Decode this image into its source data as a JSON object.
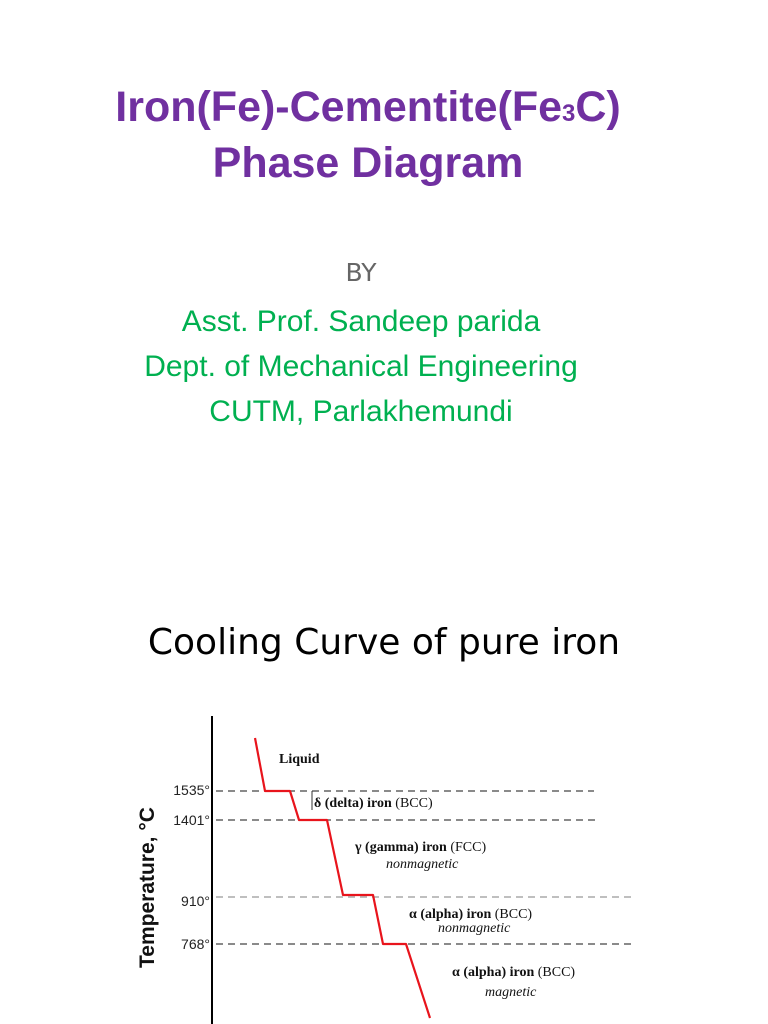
{
  "slide1": {
    "title_line1_pre": "Iron(Fe)-Cementite(Fe",
    "title_line1_sub": "3",
    "title_line1_post": "C)",
    "title_line2": "Phase Diagram",
    "by": "BY",
    "author_line1": "Asst. Prof. Sandeep parida",
    "author_line2": "Dept. of Mechanical Engineering",
    "author_line3": "CUTM, Parlakhemundi",
    "colors": {
      "title": "#7030a0",
      "author": "#00b050",
      "by": "#666666"
    }
  },
  "slide2": {
    "title": "Cooling Curve of pure iron"
  },
  "chart_data": {
    "type": "line",
    "ylabel": "Temperature, °C",
    "yticks": [
      {
        "value": 1535,
        "label": "1535°"
      },
      {
        "value": 1401,
        "label": "1401°"
      },
      {
        "value": 910,
        "label": "910°"
      },
      {
        "value": 768,
        "label": "768°"
      }
    ],
    "annotations": {
      "liquid": "Liquid",
      "delta_b": "δ (delta) iron",
      "delta_n": " (BCC)",
      "gamma_b": "γ (gamma) iron",
      "gamma_n": " (FCC)",
      "gamma_sub": "nonmagnetic",
      "alpha1_b": "α (alpha) iron",
      "alpha1_n": " (BCC)",
      "alpha1_sub": "nonmagnetic",
      "alpha2_b": "α (alpha) iron",
      "alpha2_n": " (BCC)",
      "alpha2_sub": "magnetic"
    },
    "curve_color": "#e8141c",
    "grid": false
  }
}
